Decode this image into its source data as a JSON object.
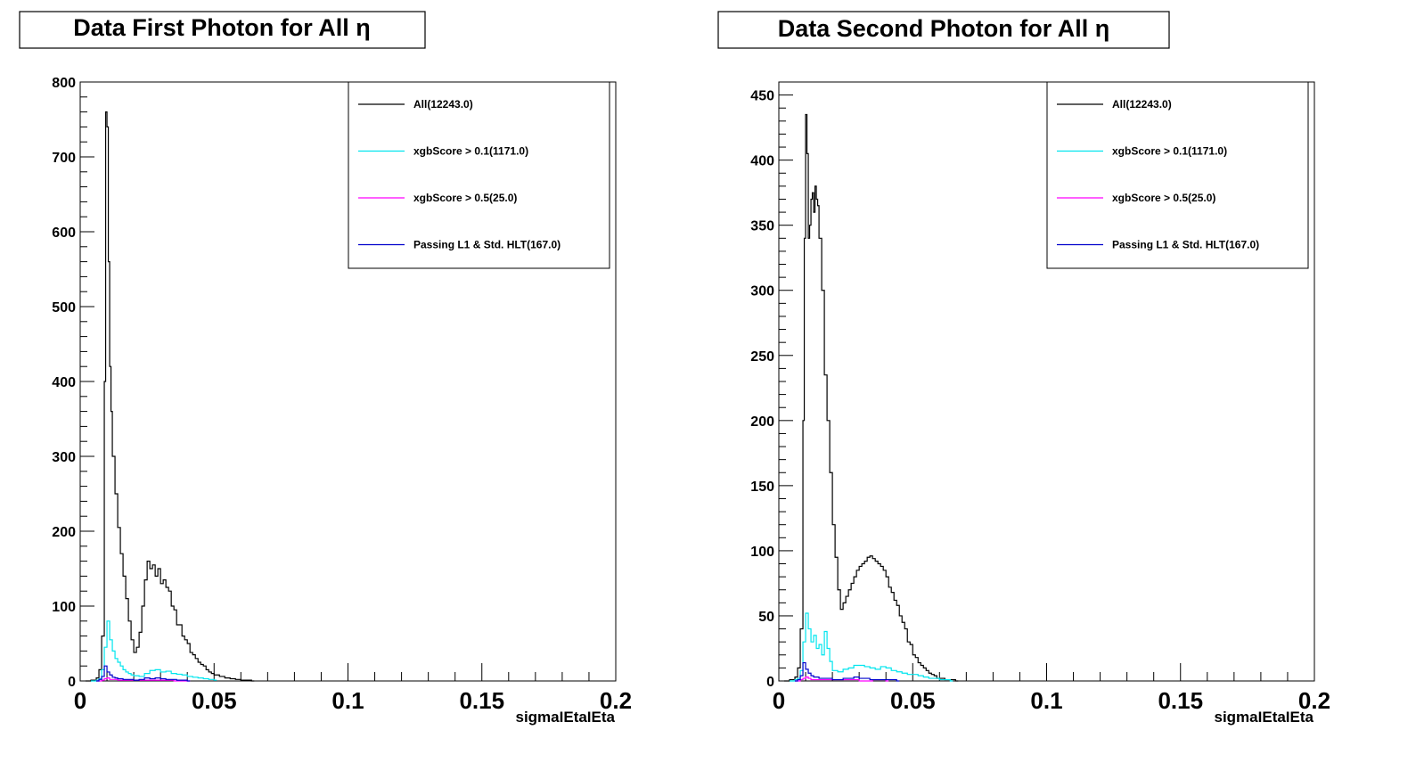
{
  "chart_data": [
    {
      "type": "histogram",
      "title": "Data First Photon for All η",
      "xlabel": "sigmaIEtaIEta",
      "ylabel": "",
      "xlim": [
        0,
        0.2
      ],
      "ylim": [
        0,
        800
      ],
      "x_ticks": [
        "0",
        "0.05",
        "0.1",
        "0.15",
        "0.2"
      ],
      "y_ticks": [
        "0",
        "100",
        "200",
        "300",
        "400",
        "500",
        "600",
        "700",
        "800"
      ],
      "y_tick_values": [
        0,
        100,
        200,
        300,
        400,
        500,
        600,
        700,
        800
      ],
      "grid": false,
      "legend_position": "top-right",
      "series": [
        {
          "name": "All(12243.0)",
          "color": "#000000",
          "x": [
            0.002,
            0.004,
            0.006,
            0.007,
            0.008,
            0.009,
            0.0095,
            0.01,
            0.0105,
            0.011,
            0.0115,
            0.012,
            0.013,
            0.014,
            0.015,
            0.016,
            0.017,
            0.018,
            0.019,
            0.02,
            0.021,
            0.022,
            0.023,
            0.024,
            0.025,
            0.026,
            0.027,
            0.028,
            0.029,
            0.03,
            0.031,
            0.032,
            0.033,
            0.034,
            0.035,
            0.036,
            0.037,
            0.038,
            0.039,
            0.04,
            0.041,
            0.042,
            0.043,
            0.044,
            0.045,
            0.046,
            0.047,
            0.048,
            0.049,
            0.05,
            0.052,
            0.054,
            0.056,
            0.058,
            0.06,
            0.062,
            0.064
          ],
          "y": [
            0,
            1,
            4,
            15,
            60,
            400,
            760,
            740,
            560,
            420,
            360,
            300,
            250,
            205,
            170,
            140,
            110,
            80,
            55,
            38,
            45,
            65,
            100,
            135,
            160,
            150,
            155,
            140,
            150,
            130,
            135,
            125,
            120,
            100,
            95,
            75,
            75,
            60,
            55,
            50,
            38,
            35,
            30,
            25,
            22,
            20,
            15,
            12,
            10,
            8,
            6,
            4,
            3,
            2,
            1,
            1,
            0
          ]
        },
        {
          "name": "xgbScore > 0.1(1171.0)",
          "color": "#00e5ee",
          "x": [
            0.004,
            0.006,
            0.007,
            0.008,
            0.009,
            0.01,
            0.011,
            0.012,
            0.013,
            0.014,
            0.015,
            0.016,
            0.017,
            0.018,
            0.019,
            0.02,
            0.022,
            0.024,
            0.026,
            0.028,
            0.03,
            0.032,
            0.034,
            0.036,
            0.038,
            0.04,
            0.042,
            0.044,
            0.046,
            0.048,
            0.05
          ],
          "y": [
            0,
            1,
            3,
            15,
            45,
            80,
            55,
            40,
            30,
            25,
            20,
            15,
            12,
            10,
            8,
            7,
            6,
            10,
            14,
            15,
            12,
            13,
            10,
            9,
            8,
            6,
            5,
            4,
            3,
            2,
            1
          ]
        },
        {
          "name": "xgbScore > 0.5(25.0)",
          "color": "#ff00ff",
          "x": [
            0.006,
            0.008,
            0.009,
            0.01,
            0.011,
            0.012,
            0.014,
            0.016,
            0.018,
            0.02,
            0.025,
            0.03,
            0.035,
            0.04
          ],
          "y": [
            0,
            1,
            3,
            4,
            2,
            2,
            1,
            1,
            1,
            1,
            1,
            1,
            0,
            0
          ]
        },
        {
          "name": "Passing L1 & Std. HLT(167.0)",
          "color": "#0000cc",
          "x": [
            0.006,
            0.007,
            0.008,
            0.009,
            0.01,
            0.011,
            0.012,
            0.013,
            0.014,
            0.015,
            0.016,
            0.018,
            0.02,
            0.022,
            0.024,
            0.026,
            0.028,
            0.03,
            0.032,
            0.034,
            0.036,
            0.04
          ],
          "y": [
            0,
            2,
            6,
            20,
            12,
            8,
            5,
            4,
            3,
            3,
            2,
            2,
            1,
            2,
            4,
            3,
            4,
            3,
            2,
            2,
            1,
            0
          ]
        }
      ]
    },
    {
      "type": "histogram",
      "title": "Data Second Photon for All η",
      "xlabel": "sigmaIEtaIEta",
      "ylabel": "",
      "xlim": [
        0,
        0.2
      ],
      "ylim": [
        0,
        460
      ],
      "x_ticks": [
        "0",
        "0.05",
        "0.1",
        "0.15",
        "0.2"
      ],
      "y_ticks": [
        "0",
        "50",
        "100",
        "150",
        "200",
        "250",
        "300",
        "350",
        "400",
        "450"
      ],
      "y_tick_values": [
        0,
        50,
        100,
        150,
        200,
        250,
        300,
        350,
        400,
        450
      ],
      "grid": false,
      "legend_position": "top-right",
      "series": [
        {
          "name": "All(12243.0)",
          "color": "#000000",
          "x": [
            0.002,
            0.004,
            0.006,
            0.007,
            0.008,
            0.009,
            0.0095,
            0.01,
            0.0105,
            0.011,
            0.0115,
            0.012,
            0.0125,
            0.013,
            0.0135,
            0.014,
            0.0145,
            0.015,
            0.016,
            0.017,
            0.018,
            0.019,
            0.02,
            0.021,
            0.022,
            0.023,
            0.024,
            0.025,
            0.026,
            0.027,
            0.028,
            0.029,
            0.03,
            0.031,
            0.032,
            0.033,
            0.034,
            0.035,
            0.036,
            0.037,
            0.038,
            0.039,
            0.04,
            0.041,
            0.042,
            0.043,
            0.044,
            0.045,
            0.046,
            0.047,
            0.048,
            0.049,
            0.05,
            0.051,
            0.052,
            0.053,
            0.054,
            0.055,
            0.056,
            0.057,
            0.058,
            0.059,
            0.06,
            0.062,
            0.064,
            0.066
          ],
          "y": [
            0,
            1,
            3,
            10,
            40,
            200,
            340,
            435,
            405,
            340,
            350,
            370,
            375,
            360,
            380,
            370,
            365,
            340,
            300,
            235,
            200,
            160,
            120,
            95,
            70,
            55,
            60,
            65,
            70,
            75,
            80,
            85,
            88,
            90,
            92,
            95,
            96,
            94,
            92,
            90,
            88,
            85,
            80,
            72,
            68,
            62,
            58,
            50,
            45,
            40,
            30,
            28,
            20,
            18,
            14,
            12,
            10,
            8,
            6,
            5,
            4,
            2,
            2,
            1,
            1,
            0
          ]
        },
        {
          "name": "xgbScore > 0.1(1171.0)",
          "color": "#00e5ee",
          "x": [
            0.004,
            0.006,
            0.007,
            0.008,
            0.009,
            0.01,
            0.011,
            0.012,
            0.013,
            0.014,
            0.015,
            0.016,
            0.017,
            0.018,
            0.019,
            0.02,
            0.022,
            0.024,
            0.026,
            0.028,
            0.03,
            0.032,
            0.034,
            0.036,
            0.038,
            0.04,
            0.042,
            0.044,
            0.046,
            0.048,
            0.05,
            0.052,
            0.054,
            0.056,
            0.058,
            0.06,
            0.064
          ],
          "y": [
            0,
            1,
            2,
            8,
            30,
            52,
            40,
            30,
            35,
            25,
            28,
            20,
            38,
            25,
            15,
            8,
            7,
            9,
            10,
            12,
            12,
            11,
            10,
            9,
            11,
            10,
            8,
            7,
            6,
            5,
            5,
            4,
            3,
            2,
            2,
            1,
            0
          ]
        },
        {
          "name": "xgbScore > 0.5(25.0)",
          "color": "#ff00ff",
          "x": [
            0.006,
            0.008,
            0.009,
            0.01,
            0.011,
            0.012,
            0.014,
            0.016,
            0.018,
            0.02,
            0.025,
            0.03,
            0.035,
            0.04
          ],
          "y": [
            0,
            1,
            2,
            3,
            2,
            1,
            1,
            1,
            1,
            1,
            1,
            0,
            1,
            0
          ]
        },
        {
          "name": "Passing L1 & Std. HLT(167.0)",
          "color": "#0000cc",
          "x": [
            0.006,
            0.007,
            0.008,
            0.009,
            0.01,
            0.011,
            0.012,
            0.013,
            0.014,
            0.015,
            0.016,
            0.018,
            0.02,
            0.022,
            0.024,
            0.026,
            0.028,
            0.03,
            0.032,
            0.034,
            0.036,
            0.04,
            0.044
          ],
          "y": [
            0,
            1,
            4,
            14,
            9,
            6,
            4,
            3,
            3,
            2,
            2,
            2,
            1,
            1,
            2,
            2,
            3,
            2,
            2,
            1,
            1,
            1,
            0
          ]
        }
      ]
    }
  ]
}
